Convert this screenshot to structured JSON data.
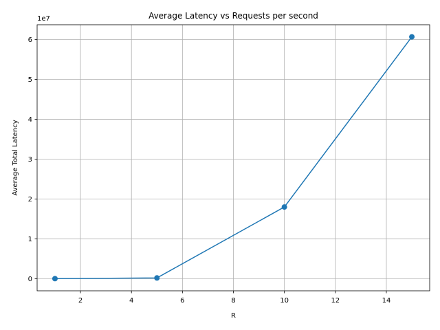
{
  "chart_data": {
    "type": "line",
    "title": "Average Latency vs Requests per second",
    "xlabel": "R",
    "ylabel": "Average Total Latency",
    "y_offset_text": "1e7",
    "x": [
      1,
      5,
      10,
      15
    ],
    "series": [
      {
        "values": [
          20000,
          200000,
          18000000,
          60700000
        ],
        "color": "#1f77b4",
        "marker": "circle"
      }
    ],
    "xlim": [
      0.3,
      15.7
    ],
    "ylim": [
      -3035000,
      63735000
    ],
    "x_ticks": [
      {
        "value": 2,
        "label": "2"
      },
      {
        "value": 4,
        "label": "4"
      },
      {
        "value": 6,
        "label": "6"
      },
      {
        "value": 8,
        "label": "8"
      },
      {
        "value": 10,
        "label": "10"
      },
      {
        "value": 12,
        "label": "12"
      },
      {
        "value": 14,
        "label": "14"
      }
    ],
    "y_ticks": [
      {
        "value": 0,
        "label": "0"
      },
      {
        "value": 10000000,
        "label": "1"
      },
      {
        "value": 20000000,
        "label": "2"
      },
      {
        "value": 30000000,
        "label": "3"
      },
      {
        "value": 40000000,
        "label": "4"
      },
      {
        "value": 50000000,
        "label": "5"
      },
      {
        "value": 60000000,
        "label": "6"
      }
    ],
    "grid": true,
    "legend": "none"
  }
}
